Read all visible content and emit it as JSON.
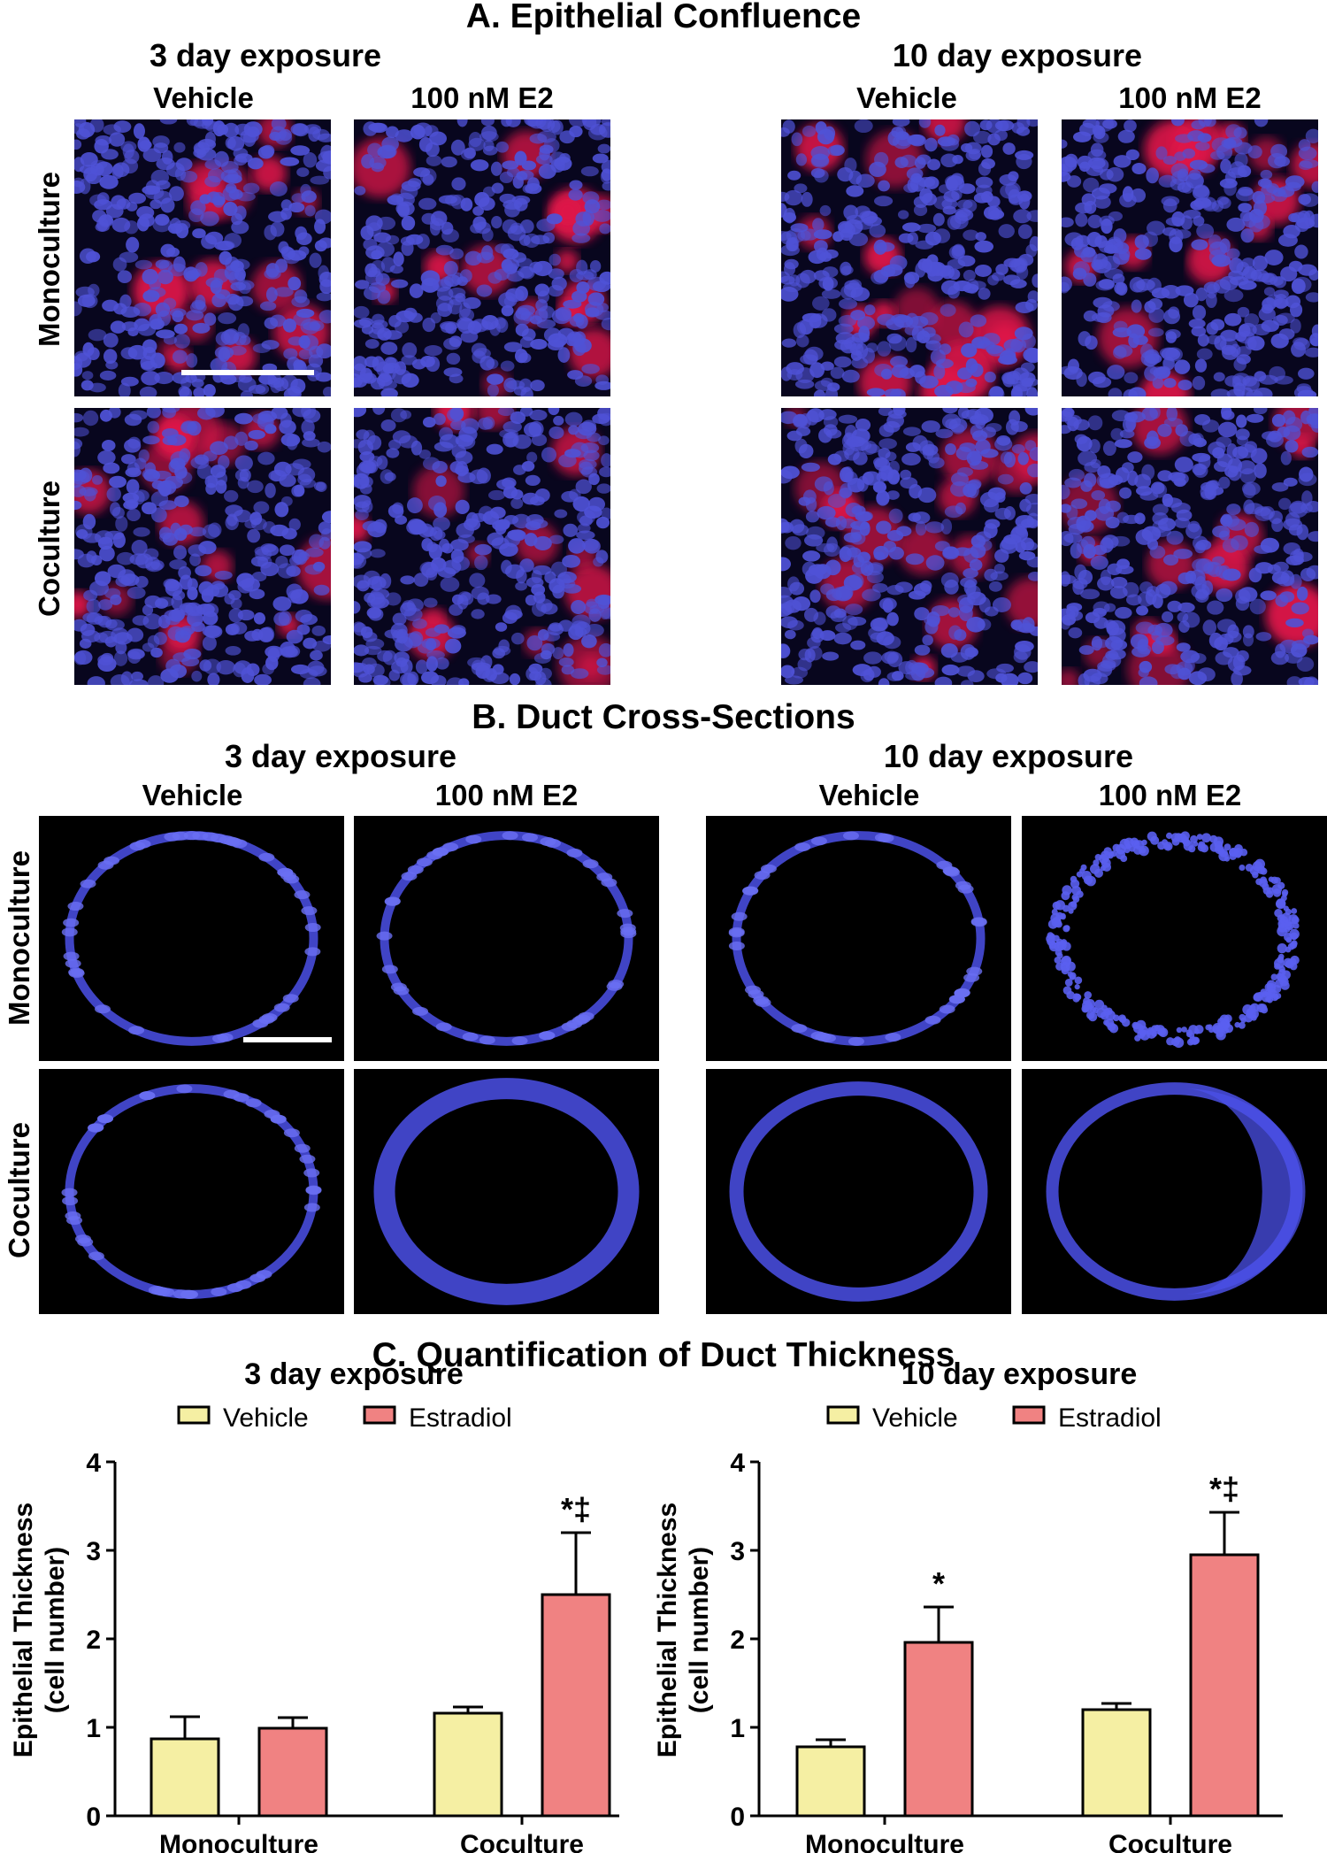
{
  "panelA": {
    "title": "A. Epithelial Confluence",
    "exposure_3": "3 day exposure",
    "exposure_10": "10 day exposure",
    "col_vehicle": "Vehicle",
    "col_e2": "100 nM E2",
    "row_mono": "Monoculture",
    "row_co": "Coculture"
  },
  "panelB": {
    "title": "B. Duct Cross-Sections",
    "exposure_3": "3 day exposure",
    "exposure_10": "10 day exposure",
    "col_vehicle": "Vehicle",
    "col_e2": "100 nM E2",
    "row_mono": "Monoculture",
    "row_co": "Coculture"
  },
  "panelC": {
    "title": "C. Quantification of Duct Thickness"
  },
  "colors": {
    "vehicle": "#f5efa3",
    "estradiol": "#f08282",
    "nuclei": "#4a4ed8",
    "actin": "#ee1c4a",
    "background": "#08061e"
  },
  "chart_data": [
    {
      "type": "bar",
      "title": "3 day exposure",
      "ylabel": "Epithelial Thickness (cell number)",
      "ylabel_line1": "Epithelial Thickness",
      "ylabel_line2": "(cell number)",
      "categories": [
        "Monoculture",
        "Coculture"
      ],
      "ylim": [
        0,
        4
      ],
      "yticks": [
        "0",
        "1",
        "2",
        "3",
        "4"
      ],
      "legend": "top",
      "series": [
        {
          "name": "Vehicle",
          "values": [
            0.87,
            1.16
          ],
          "errors": [
            0.25,
            0.07
          ],
          "annotations": [
            "",
            ""
          ]
        },
        {
          "name": "Estradiol",
          "values": [
            0.99,
            2.5
          ],
          "errors": [
            0.12,
            0.7
          ],
          "annotations": [
            "",
            "*‡"
          ]
        }
      ]
    },
    {
      "type": "bar",
      "title": "10 day exposure",
      "ylabel": "Epithelial Thickness (cell number)",
      "ylabel_line1": "Epithelial Thickness",
      "ylabel_line2": "(cell number)",
      "categories": [
        "Monoculture",
        "Coculture"
      ],
      "ylim": [
        0,
        4
      ],
      "yticks": [
        "0",
        "1",
        "2",
        "3",
        "4"
      ],
      "legend": "top",
      "series": [
        {
          "name": "Vehicle",
          "values": [
            0.78,
            1.2
          ],
          "errors": [
            0.08,
            0.07
          ],
          "annotations": [
            "",
            ""
          ]
        },
        {
          "name": "Estradiol",
          "values": [
            1.96,
            2.95
          ],
          "errors": [
            0.4,
            0.48
          ],
          "annotations": [
            "*",
            "*‡"
          ]
        }
      ]
    }
  ]
}
